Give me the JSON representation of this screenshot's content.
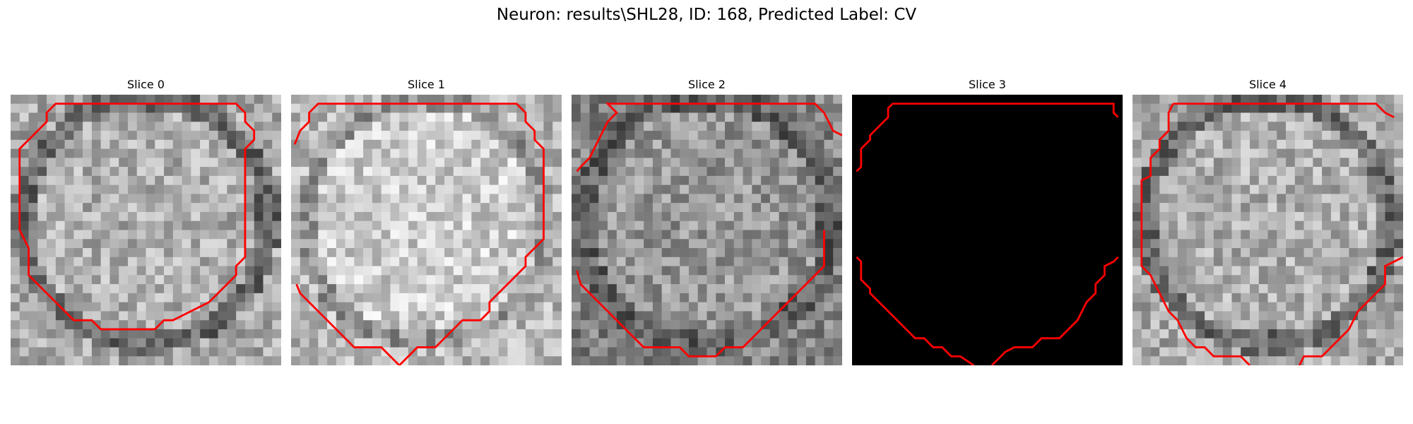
{
  "figure": {
    "title": "Neuron: results\\SHL28, ID: 168, Predicted Label: CV",
    "contour_color": "#ff0000"
  },
  "panels": [
    {
      "title": "Slice 0",
      "image": "grayscale-cell-patch"
    },
    {
      "title": "Slice 1",
      "image": "grayscale-cell-patch"
    },
    {
      "title": "Slice 2",
      "image": "grayscale-cell-patch"
    },
    {
      "title": "Slice 3",
      "image": "black-patch"
    },
    {
      "title": "Slice 4",
      "image": "grayscale-cell-patch"
    }
  ]
}
